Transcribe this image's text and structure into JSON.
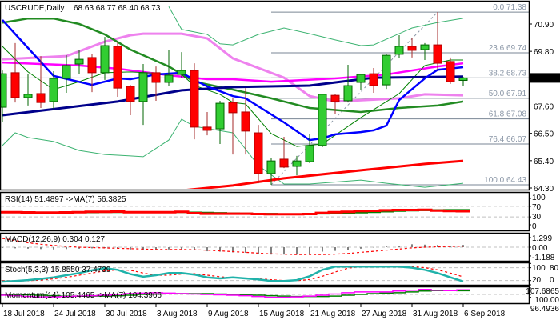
{
  "header": {
    "symbol": "USCRUDE,Daily",
    "ohlc": "68.63 68.77 68.40 68.73"
  },
  "price_axis": {
    "ticks": [
      "70.90",
      "69.80",
      "67.60",
      "66.50",
      "65.40",
      "64.30"
    ],
    "current": "68.73"
  },
  "fib": [
    {
      "label": "0.0 71.38",
      "price": 71.38
    },
    {
      "label": "23.6 69.74",
      "price": 69.74
    },
    {
      "label": "38.2 68.73",
      "price": 68.73
    },
    {
      "label": "50.0 67.91",
      "price": 67.91
    },
    {
      "label": "61.8 67.08",
      "price": 67.08
    },
    {
      "label": "76.4 66.07",
      "price": 66.07
    },
    {
      "label": "100.0 64.43",
      "price": 64.43
    }
  ],
  "indicators": {
    "rsi": {
      "title": "RSI(14) 51.4897  ->MA(7) 56.3825",
      "axis": [
        "100",
        "70",
        "30",
        "0"
      ]
    },
    "macd": {
      "title": "MACD(12,26,9) 0.304 0.127",
      "axis": [
        "1.299",
        "0.00",
        "-1.188"
      ]
    },
    "stoch": {
      "title": "Stoch(5,3,3) 15.8550 37.4739",
      "axis": [
        "100",
        "80",
        "20",
        "0"
      ]
    },
    "momentum": {
      "title": "Momentum(14) 105.4465  ->MA(7) 104.3966",
      "axis": [
        "107.6865",
        "100.00",
        "96.4936"
      ]
    }
  },
  "dates": [
    {
      "label": "18 Jul 2018",
      "index": 0
    },
    {
      "label": "24 Jul 2018",
      "index": 4
    },
    {
      "label": "30 Jul 2018",
      "index": 8
    },
    {
      "label": "3 Aug 2018",
      "index": 12
    },
    {
      "label": "9 Aug 2018",
      "index": 16
    },
    {
      "label": "15 Aug 2018",
      "index": 20
    },
    {
      "label": "21 Aug 2018",
      "index": 24
    },
    {
      "label": "27 Aug 2018",
      "index": 28
    },
    {
      "label": "31 Aug 2018",
      "index": 32
    },
    {
      "label": "6 Sep 2018",
      "index": 36
    }
  ],
  "colors": {
    "up": "#32cd32",
    "up_edge": "#006400",
    "down": "#ff0000",
    "down_wick": "#a52a2a"
  },
  "chart_data": {
    "type": "candlestick",
    "title": "USCRUDE,Daily",
    "ylim": [
      64.3,
      71.4
    ],
    "candles": [
      [
        67.55,
        69.03,
        66.97,
        68.9
      ],
      [
        68.94,
        70.13,
        67.74,
        67.94
      ],
      [
        67.94,
        68.87,
        67.62,
        68.07
      ],
      [
        68.1,
        69.61,
        67.52,
        67.74
      ],
      [
        67.78,
        69.0,
        67.49,
        68.71
      ],
      [
        68.71,
        69.64,
        68.13,
        69.23
      ],
      [
        69.29,
        69.87,
        68.87,
        69.48
      ],
      [
        69.55,
        69.71,
        68.16,
        68.94
      ],
      [
        68.94,
        70.38,
        68.65,
        70.03
      ],
      [
        70.0,
        70.16,
        67.97,
        68.32
      ],
      [
        68.39,
        68.45,
        67.23,
        67.78
      ],
      [
        67.78,
        69.29,
        66.84,
        68.94
      ],
      [
        68.94,
        69.19,
        67.81,
        68.55
      ],
      [
        68.55,
        69.87,
        68.42,
        68.84
      ],
      [
        68.87,
        69.77,
        68.74,
        69.03
      ],
      [
        69.03,
        69.32,
        66.26,
        66.75
      ],
      [
        66.75,
        67.36,
        66.42,
        66.62
      ],
      [
        66.68,
        67.81,
        66.07,
        67.71
      ],
      [
        67.74,
        67.91,
        65.65,
        67.33
      ],
      [
        67.36,
        68.32,
        65.65,
        66.59
      ],
      [
        66.52,
        66.84,
        64.49,
        64.88
      ],
      [
        64.88,
        65.49,
        64.43,
        65.39
      ],
      [
        65.46,
        66.36,
        65.1,
        65.14
      ],
      [
        65.17,
        65.59,
        64.81,
        65.39
      ],
      [
        65.36,
        66.46,
        65.3,
        66.01
      ],
      [
        66.01,
        68.1,
        65.94,
        68.07
      ],
      [
        68.03,
        68.07,
        67.26,
        67.78
      ],
      [
        67.81,
        69.26,
        67.74,
        68.42
      ],
      [
        68.55,
        68.9,
        68.26,
        68.87
      ],
      [
        68.9,
        69.13,
        68.13,
        68.42
      ],
      [
        68.45,
        69.71,
        68.29,
        69.64
      ],
      [
        69.68,
        70.45,
        69.52,
        70.0
      ],
      [
        70.0,
        70.32,
        69.55,
        69.84
      ],
      [
        69.87,
        70.13,
        69.45,
        70.06
      ],
      [
        70.06,
        71.38,
        69.03,
        69.32
      ],
      [
        69.39,
        69.55,
        68.49,
        68.58
      ],
      [
        68.63,
        68.77,
        68.4,
        68.73
      ]
    ],
    "overlays": [
      {
        "name": "bb-upper",
        "color": "#3cb371",
        "width": 1,
        "points": [
          [
            13,
            71.6
          ],
          [
            14,
            70.68
          ],
          [
            16,
            70.48
          ],
          [
            17,
            70.1
          ],
          [
            18,
            70.06
          ],
          [
            20,
            70.48
          ],
          [
            22,
            70.74
          ],
          [
            24,
            70.51
          ],
          [
            26,
            70.26
          ],
          [
            28,
            70.03
          ],
          [
            29,
            70.06
          ],
          [
            32,
            70.74
          ],
          [
            34,
            70.96
          ],
          [
            36,
            71.13
          ]
        ]
      },
      {
        "name": "bb-lower",
        "color": "#3cb371",
        "width": 1,
        "points": [
          [
            0,
            66.01
          ],
          [
            1,
            66.52
          ],
          [
            2,
            66.33
          ],
          [
            4,
            66.17
          ],
          [
            6,
            65.81
          ],
          [
            8,
            65.65
          ],
          [
            10,
            65.59
          ],
          [
            11,
            65.56
          ],
          [
            13,
            66.23
          ],
          [
            14,
            67.07
          ],
          [
            15,
            66.78
          ],
          [
            18,
            66.52
          ],
          [
            20,
            65.2
          ],
          [
            22,
            64.46
          ],
          [
            24,
            64.46
          ],
          [
            28,
            64.62
          ],
          [
            30,
            64.49
          ],
          [
            33,
            64.33
          ],
          [
            36,
            64.49
          ]
        ]
      },
      {
        "name": "ma-violet",
        "color": "#ee82ee",
        "width": 3,
        "points": [
          [
            0,
            69.48
          ],
          [
            5,
            69.61
          ],
          [
            8,
            70.19
          ],
          [
            10,
            70.45
          ],
          [
            11,
            70.51
          ],
          [
            14,
            70.51
          ],
          [
            16,
            70.32
          ],
          [
            18,
            69.52
          ],
          [
            22,
            68.74
          ],
          [
            24,
            68.0
          ],
          [
            26,
            67.78
          ],
          [
            31,
            67.91
          ],
          [
            33,
            68.07
          ],
          [
            36,
            68.03
          ]
        ]
      },
      {
        "name": "ma-magenta",
        "color": "#ff00ff",
        "width": 2.5,
        "points": [
          [
            0,
            69.35
          ],
          [
            6,
            69.23
          ],
          [
            9,
            69.1
          ],
          [
            13,
            68.84
          ],
          [
            16,
            68.68
          ],
          [
            18,
            68.68
          ],
          [
            21,
            68.58
          ],
          [
            26,
            68.71
          ],
          [
            30,
            68.87
          ],
          [
            34,
            69.19
          ],
          [
            36,
            69.32
          ]
        ]
      },
      {
        "name": "ma-green-slow",
        "color": "#228b22",
        "width": 2.5,
        "points": [
          [
            0,
            70.95
          ],
          [
            2,
            71.12
          ],
          [
            4,
            71.12
          ],
          [
            6,
            70.9
          ],
          [
            8,
            70.48
          ],
          [
            10,
            69.87
          ],
          [
            13,
            69.19
          ],
          [
            15,
            68.58
          ],
          [
            17,
            68.36
          ],
          [
            18,
            68.26
          ],
          [
            21,
            67.91
          ],
          [
            24,
            67.52
          ],
          [
            28,
            67.36
          ],
          [
            31,
            67.52
          ],
          [
            34,
            67.62
          ],
          [
            36,
            67.78
          ]
        ]
      },
      {
        "name": "ma-green-fast",
        "color": "#008000",
        "width": 1,
        "points": [
          [
            0,
            70.0
          ],
          [
            2,
            68.97
          ],
          [
            4,
            68.26
          ],
          [
            6,
            68.58
          ],
          [
            8,
            68.94
          ],
          [
            10,
            68.97
          ],
          [
            14,
            68.87
          ],
          [
            15,
            68.42
          ],
          [
            17,
            68.07
          ],
          [
            18,
            67.74
          ],
          [
            19,
            67.68
          ],
          [
            21,
            66.49
          ],
          [
            23,
            65.97
          ],
          [
            25,
            66.07
          ],
          [
            28,
            67.13
          ],
          [
            31,
            68.1
          ],
          [
            33,
            69.23
          ],
          [
            35,
            69.45
          ],
          [
            36,
            69.45
          ]
        ]
      },
      {
        "name": "ma-navy",
        "color": "#00008b",
        "width": 3,
        "points": [
          [
            0,
            67.23
          ],
          [
            9,
            67.78
          ],
          [
            14,
            68.23
          ],
          [
            18,
            68.36
          ],
          [
            24,
            68.42
          ],
          [
            29,
            68.74
          ],
          [
            36,
            68.78
          ]
        ]
      },
      {
        "name": "ma-blue",
        "color": "#0000ff",
        "width": 2.5,
        "points": [
          [
            0,
            71.06
          ],
          [
            4,
            68.81
          ],
          [
            7,
            68.45
          ],
          [
            9,
            68.71
          ],
          [
            10,
            68.68
          ],
          [
            12,
            68.87
          ],
          [
            14,
            68.94
          ],
          [
            15,
            68.65
          ],
          [
            16,
            68.39
          ],
          [
            18,
            68.0
          ],
          [
            19,
            67.91
          ],
          [
            22,
            66.94
          ],
          [
            24,
            66.23
          ],
          [
            25,
            66.3
          ],
          [
            26,
            66.46
          ],
          [
            28,
            66.55
          ],
          [
            29,
            66.62
          ],
          [
            30,
            66.81
          ],
          [
            31,
            67.84
          ],
          [
            33,
            68.71
          ],
          [
            34,
            69.06
          ],
          [
            36,
            69.16
          ]
        ]
      },
      {
        "name": "ma-red",
        "color": "#ff0000",
        "width": 3,
        "points": [
          [
            14,
            64.2
          ],
          [
            16,
            64.3
          ],
          [
            18,
            64.4
          ],
          [
            22,
            64.69
          ],
          [
            28,
            65.01
          ],
          [
            33,
            65.27
          ],
          [
            36,
            65.39
          ]
        ]
      }
    ],
    "fib_swing": {
      "from": [
        21,
        64.43
      ],
      "to": [
        34,
        71.38
      ]
    },
    "rsi": {
      "rsi": [
        48,
        48,
        47,
        46,
        46,
        47,
        48,
        49,
        49,
        50,
        48,
        48,
        48,
        48,
        49,
        44,
        42,
        42,
        42,
        42,
        41,
        40,
        40,
        40,
        41,
        45,
        48,
        49,
        52,
        53,
        55,
        56,
        56,
        57,
        54,
        52,
        51.49
      ],
      "ma": [
        47,
        47,
        47,
        47,
        47,
        47,
        47,
        47,
        48,
        48,
        48,
        48,
        48,
        48,
        48,
        47,
        46,
        45,
        44,
        43,
        42,
        42,
        41,
        41,
        41,
        42,
        43,
        44,
        46,
        48,
        50,
        52,
        54,
        55,
        56,
        56.5,
        56.38
      ]
    },
    "macd": {
      "histogram": [
        -0.1,
        -0.15,
        -0.2,
        -0.25,
        -0.3,
        -0.25,
        -0.2,
        -0.15,
        -0.1,
        -0.2,
        -0.3,
        -0.35,
        -0.3,
        -0.3,
        -0.25,
        -0.4,
        -0.55,
        -0.6,
        -0.7,
        -0.75,
        -0.9,
        -1.0,
        -1.0,
        -1.0,
        -0.9,
        -0.6,
        -0.5,
        -0.35,
        -0.2,
        -0.05,
        0.1,
        0.2,
        0.4,
        0.35,
        0.3,
        0.2,
        0.304
      ],
      "signal": [
        1.2,
        0.9,
        0.6,
        0.4,
        0.25,
        0.1,
        0.0,
        -0.05,
        -0.1,
        -0.15,
        -0.2,
        -0.25,
        -0.3,
        -0.3,
        -0.3,
        -0.35,
        -0.4,
        -0.5,
        -0.6,
        -0.7,
        -0.8,
        -0.9,
        -0.95,
        -1.0,
        -1.0,
        -1.0,
        -0.95,
        -0.85,
        -0.7,
        -0.55,
        -0.4,
        -0.25,
        -0.1,
        0.0,
        0.05,
        0.1,
        0.127
      ]
    },
    "stoch": {
      "k": [
        15,
        18,
        22,
        28,
        35,
        45,
        55,
        68,
        78,
        70,
        50,
        38,
        45,
        55,
        55,
        48,
        35,
        30,
        35,
        30,
        25,
        18,
        18,
        22,
        40,
        70,
        85,
        85,
        85,
        85,
        85,
        85,
        80,
        70,
        55,
        35,
        15.86
      ],
      "d": [
        20,
        18,
        19,
        22,
        28,
        35,
        45,
        55,
        65,
        70,
        68,
        55,
        45,
        45,
        50,
        52,
        45,
        38,
        33,
        32,
        28,
        24,
        20,
        19,
        25,
        40,
        60,
        78,
        85,
        85,
        85,
        85,
        85,
        80,
        70,
        55,
        37.47
      ]
    },
    "momentum": {
      "momentum": [
        99,
        98.5,
        97.5,
        97,
        97,
        97.5,
        98,
        98.5,
        99,
        100,
        101,
        101.5,
        102,
        101.5,
        101,
        100.5,
        100,
        99.5,
        99,
        98.5,
        97.5,
        96.5,
        96.5,
        97,
        98,
        99,
        100.5,
        102,
        103,
        103,
        103,
        104,
        105,
        106,
        105,
        104.5,
        105.45
      ],
      "ma": [
        100,
        100,
        99.5,
        99,
        98.5,
        98,
        98,
        98,
        98,
        98.5,
        99,
        100,
        100.5,
        101,
        101,
        101,
        101,
        100.5,
        100,
        99.5,
        99,
        98.5,
        98,
        97.5,
        97.5,
        97.5,
        98,
        99,
        100,
        101,
        101.5,
        102,
        103,
        104,
        104.5,
        104.5,
        104.4
      ]
    }
  }
}
